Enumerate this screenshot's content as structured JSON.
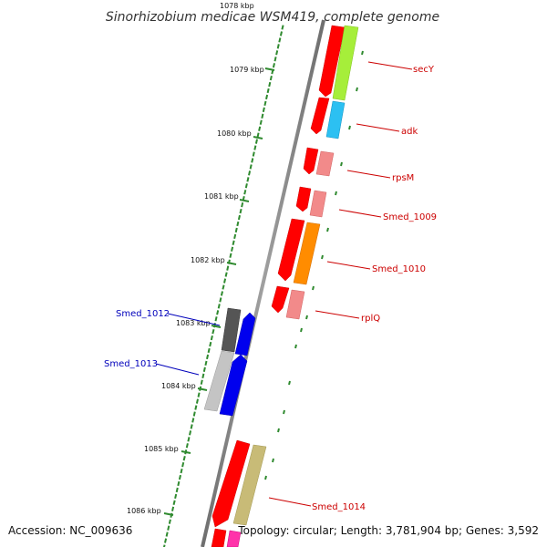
{
  "title": "Sinorhizobium medicae WSM419, complete genome",
  "ticks": {
    "top_clipped_label": "1078 kbp",
    "labels": [
      "1079 kbp",
      "1080 kbp",
      "1081 kbp",
      "1082 kbp",
      "1083 kbp",
      "1084 kbp",
      "1085 kbp",
      "1086 kbp"
    ]
  },
  "gene_labels": {
    "right_strand": [
      "secY",
      "adk",
      "rpsM",
      "Smed_1009",
      "Smed_1010",
      "rplQ",
      "Smed_1014"
    ],
    "left_strand": [
      "Smed_1012",
      "Smed_1013"
    ]
  },
  "footer": {
    "accession": "Accession: NC_009636",
    "info": "Topology: circular; Length: 3,781,904 bp; Genes: 3,592"
  },
  "colors": {
    "backbone": "#8c8c8c",
    "tick": "#2f8a2f",
    "label_red": "#cc0000",
    "label_blue": "#0000bb",
    "cds_red": "#ff0000",
    "cds_pink": "#f28a8a",
    "secY_fill": "#a6ee3a",
    "adk_fill": "#2cc0f2",
    "smed1010_fill": "#ff8c00",
    "smed1012_dark": "#555555",
    "smed1013_light": "#c4c4c4",
    "cds_blue": "#0000ee",
    "smed1014_fill": "#c8bb77",
    "bottom_magenta": "#ff33aa"
  }
}
